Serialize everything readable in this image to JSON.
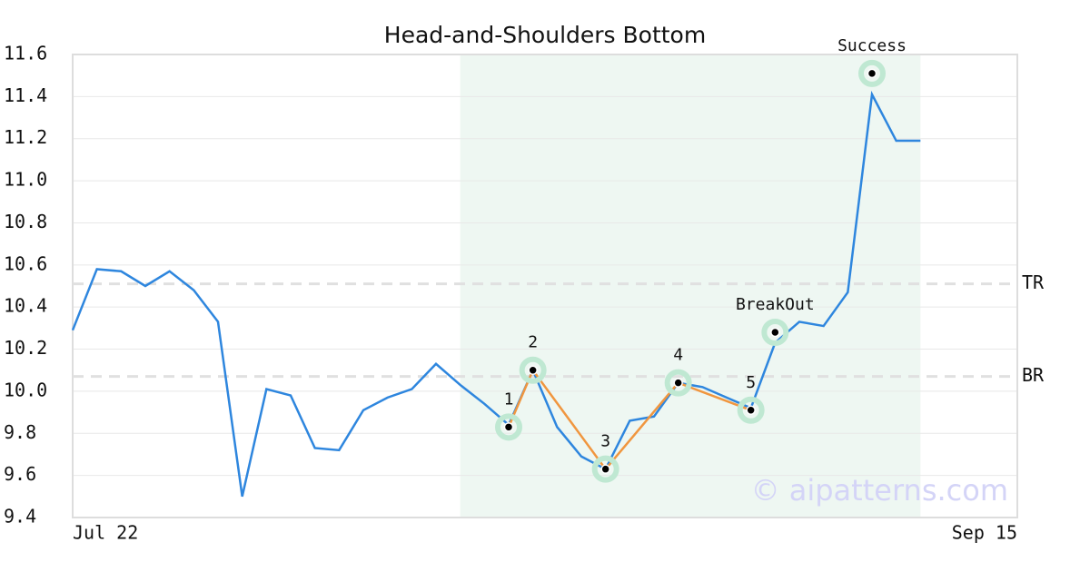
{
  "chart_data": {
    "type": "line",
    "title": "Head-and-Shoulders Bottom",
    "x": [
      0,
      1,
      2,
      3,
      4,
      5,
      6,
      7,
      8,
      9,
      10,
      11,
      12,
      13,
      14,
      15,
      16,
      17,
      18,
      19,
      20,
      21,
      22,
      23,
      24,
      25,
      26,
      27,
      28,
      29,
      30,
      31,
      32,
      33,
      34,
      35
    ],
    "series": [
      {
        "color": "#2e86de",
        "values": [
          10.29,
          10.58,
          10.57,
          10.5,
          10.57,
          10.48,
          10.33,
          9.5,
          10.01,
          9.98,
          9.73,
          9.72,
          9.91,
          9.97,
          10.01,
          10.13,
          10.03,
          9.94,
          9.84,
          10.1,
          9.83,
          9.69,
          9.63,
          9.86,
          9.88,
          10.04,
          10.02,
          9.97,
          9.92,
          10.23,
          10.33,
          10.31,
          10.47,
          11.41,
          11.19,
          11.19
        ]
      }
    ],
    "pattern": {
      "color": "#f0963f",
      "labels": [
        "1",
        "2",
        "3",
        "4",
        "5"
      ],
      "x": [
        18,
        19,
        22,
        25,
        28
      ],
      "values": [
        9.83,
        10.1,
        9.63,
        10.04,
        9.91
      ]
    },
    "annotations": [
      {
        "label": "BreakOut",
        "x": 29,
        "value": 10.28
      },
      {
        "label": "Success",
        "x": 33,
        "value": 11.51
      }
    ],
    "levels": [
      {
        "label": "TR",
        "value": 10.51
      },
      {
        "label": "BR",
        "value": 10.07
      }
    ],
    "highlight": [
      16,
      35
    ],
    "watermark": "© aipatterns.com",
    "xlim": [
      0,
      39
    ],
    "xticks": [
      {
        "value": 0,
        "label": "Jul 22"
      },
      {
        "value": 39,
        "label": "Sep 15"
      }
    ],
    "ylim": [
      9.4,
      11.6
    ],
    "yticks": [
      9.4,
      9.6,
      9.8,
      {
        "value": 10,
        "label": "10.0"
      },
      10.2,
      10.4,
      10.6,
      10.8,
      {
        "value": 11,
        "label": "11.0"
      },
      11.2,
      11.4,
      11.6
    ],
    "grid": true
  }
}
